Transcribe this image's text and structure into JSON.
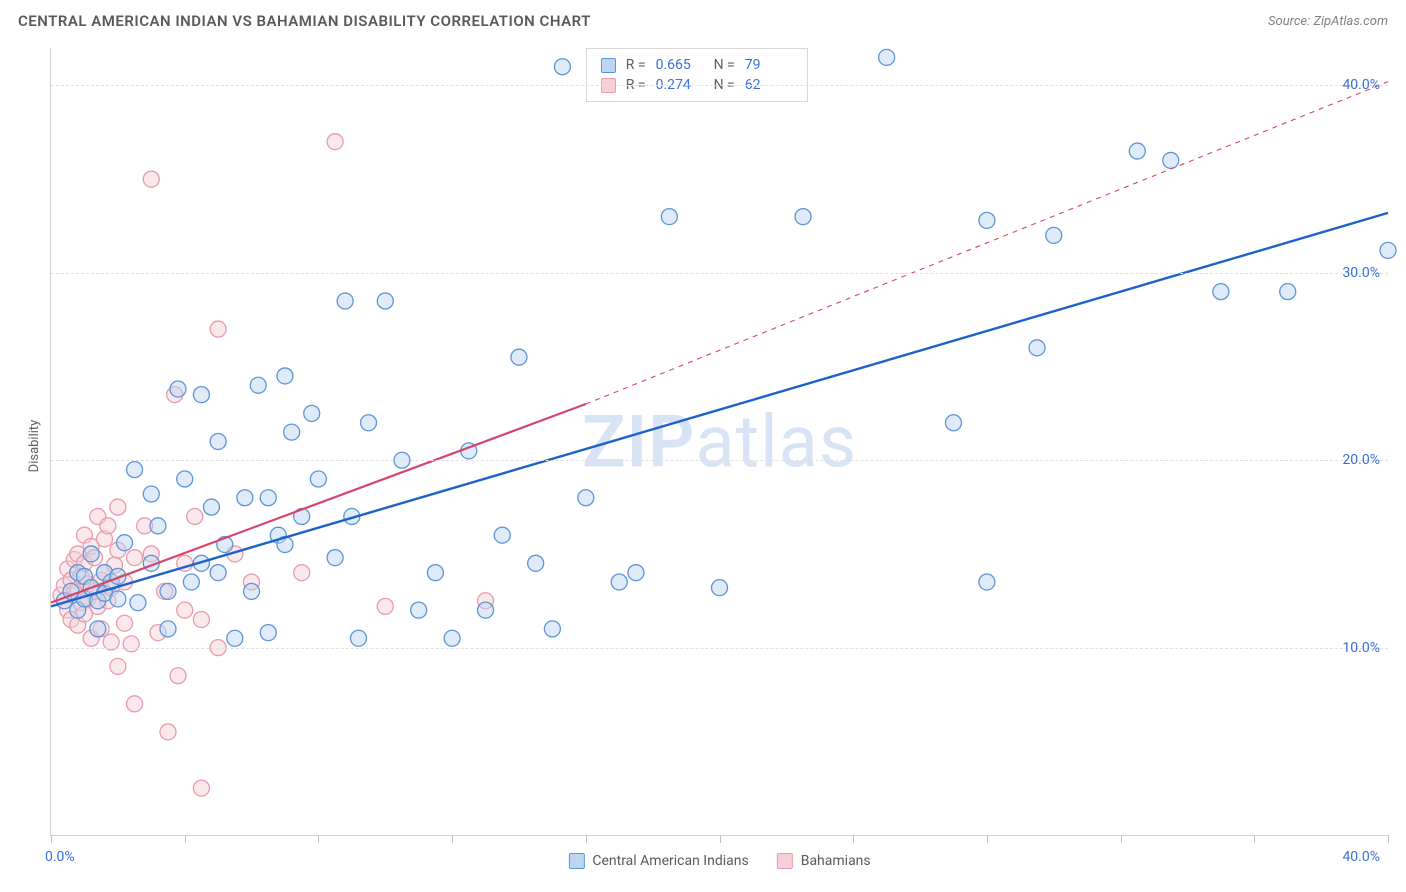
{
  "title": "CENTRAL AMERICAN INDIAN VS BAHAMIAN DISABILITY CORRELATION CHART",
  "source_label": "Source: ",
  "source_name": "ZipAtlas.com",
  "watermark": "ZIPatlas",
  "chart": {
    "type": "scatter",
    "ylabel": "Disability",
    "xlim": [
      0,
      40
    ],
    "ylim": [
      0,
      42
    ],
    "x_ticks": [
      0,
      4,
      8,
      12,
      16,
      20,
      24,
      28,
      32,
      36,
      40
    ],
    "y_gridlines": [
      10,
      20,
      30,
      40
    ],
    "y_tick_labels": [
      "10.0%",
      "20.0%",
      "30.0%",
      "40.0%"
    ],
    "x_tick_label_min": "0.0%",
    "x_tick_label_max": "40.0%",
    "axis_color": "#d0d0d0",
    "grid_color": "#e0e0e0",
    "label_color": "#3a6fd8",
    "background_color": "#ffffff",
    "marker_radius": 8,
    "marker_stroke_width": 1.3,
    "marker_fill_opacity": 0.22,
    "series": [
      {
        "name": "Central American Indians",
        "color_stroke": "#5e95d6",
        "color_fill": "#bcd5f0",
        "trend_color": "#1e62c9",
        "trend_width": 2.4,
        "trend_dash": "",
        "trend": {
          "x1": 0,
          "y1": 12.2,
          "x2": 40,
          "y2": 33.2
        },
        "extrap": null,
        "R": "0.665",
        "N": "79",
        "points": [
          [
            0.4,
            12.5
          ],
          [
            0.6,
            13.0
          ],
          [
            0.8,
            12.0
          ],
          [
            0.8,
            14.0
          ],
          [
            1.0,
            12.6
          ],
          [
            1.0,
            13.8
          ],
          [
            1.2,
            13.2
          ],
          [
            1.2,
            15.0
          ],
          [
            1.4,
            12.5
          ],
          [
            1.4,
            11.0
          ],
          [
            1.6,
            14.0
          ],
          [
            1.6,
            12.9
          ],
          [
            1.8,
            13.5
          ],
          [
            2.0,
            13.8
          ],
          [
            2.0,
            12.6
          ],
          [
            2.2,
            15.6
          ],
          [
            2.5,
            19.5
          ],
          [
            2.6,
            12.4
          ],
          [
            3.0,
            14.5
          ],
          [
            3.2,
            16.5
          ],
          [
            3.5,
            11.0
          ],
          [
            3.5,
            13.0
          ],
          [
            3.8,
            23.8
          ],
          [
            4.0,
            19.0
          ],
          [
            4.2,
            13.5
          ],
          [
            4.5,
            23.5
          ],
          [
            4.8,
            17.5
          ],
          [
            5.0,
            21.0
          ],
          [
            5.0,
            14.0
          ],
          [
            5.2,
            15.5
          ],
          [
            5.5,
            10.5
          ],
          [
            5.8,
            18.0
          ],
          [
            6.0,
            13.0
          ],
          [
            6.2,
            24.0
          ],
          [
            6.5,
            18.0
          ],
          [
            6.8,
            16.0
          ],
          [
            7.0,
            15.5
          ],
          [
            7.2,
            21.5
          ],
          [
            7.5,
            17.0
          ],
          [
            7.8,
            22.5
          ],
          [
            8.0,
            19.0
          ],
          [
            8.5,
            14.8
          ],
          [
            8.8,
            28.5
          ],
          [
            9.0,
            17.0
          ],
          [
            9.2,
            10.5
          ],
          [
            9.5,
            22.0
          ],
          [
            10.0,
            28.5
          ],
          [
            10.5,
            20.0
          ],
          [
            11.0,
            12.0
          ],
          [
            11.5,
            14.0
          ],
          [
            12.0,
            10.5
          ],
          [
            12.5,
            20.5
          ],
          [
            13.0,
            12.0
          ],
          [
            13.5,
            16.0
          ],
          [
            14.0,
            25.5
          ],
          [
            14.5,
            14.5
          ],
          [
            15.0,
            11.0
          ],
          [
            15.3,
            41.0
          ],
          [
            16.0,
            18.0
          ],
          [
            17.0,
            13.5
          ],
          [
            17.5,
            14.0
          ],
          [
            18.5,
            33.0
          ],
          [
            20.0,
            13.2
          ],
          [
            22.5,
            33.0
          ],
          [
            25.0,
            41.5
          ],
          [
            27.0,
            22.0
          ],
          [
            28.0,
            32.8
          ],
          [
            28.0,
            13.5
          ],
          [
            29.5,
            26.0
          ],
          [
            30.0,
            32.0
          ],
          [
            32.5,
            36.5
          ],
          [
            33.5,
            36.0
          ],
          [
            35.0,
            29.0
          ],
          [
            37.0,
            29.0
          ],
          [
            40.0,
            31.2
          ],
          [
            3.0,
            18.2
          ],
          [
            4.5,
            14.5
          ],
          [
            6.5,
            10.8
          ],
          [
            7.0,
            24.5
          ]
        ]
      },
      {
        "name": "Bahamians",
        "color_stroke": "#e89cac",
        "color_fill": "#f6cfd7",
        "trend_color": "#d6456c",
        "trend_width": 2.2,
        "trend_dash": "",
        "trend": {
          "x1": 0,
          "y1": 12.4,
          "x2": 16,
          "y2": 23.0
        },
        "extrap": {
          "x1": 16,
          "y1": 23.0,
          "x2": 40,
          "y2": 40.2,
          "dash": "5,5",
          "width": 1.1
        },
        "R": "0.274",
        "N": "62",
        "points": [
          [
            0.3,
            12.8
          ],
          [
            0.4,
            13.3
          ],
          [
            0.5,
            12.0
          ],
          [
            0.5,
            14.2
          ],
          [
            0.6,
            11.5
          ],
          [
            0.6,
            13.6
          ],
          [
            0.7,
            12.9
          ],
          [
            0.7,
            14.7
          ],
          [
            0.8,
            13.1
          ],
          [
            0.8,
            11.2
          ],
          [
            0.8,
            15.0
          ],
          [
            0.9,
            12.4
          ],
          [
            0.9,
            13.8
          ],
          [
            1.0,
            14.5
          ],
          [
            1.0,
            11.8
          ],
          [
            1.0,
            16.0
          ],
          [
            1.1,
            12.6
          ],
          [
            1.1,
            13.4
          ],
          [
            1.2,
            15.4
          ],
          [
            1.2,
            10.5
          ],
          [
            1.3,
            13.0
          ],
          [
            1.3,
            14.8
          ],
          [
            1.4,
            12.2
          ],
          [
            1.4,
            17.0
          ],
          [
            1.5,
            13.6
          ],
          [
            1.5,
            11.0
          ],
          [
            1.6,
            15.8
          ],
          [
            1.6,
            14.0
          ],
          [
            1.7,
            12.5
          ],
          [
            1.7,
            16.5
          ],
          [
            1.8,
            13.2
          ],
          [
            1.8,
            10.3
          ],
          [
            1.9,
            14.4
          ],
          [
            2.0,
            15.2
          ],
          [
            2.0,
            17.5
          ],
          [
            2.0,
            9.0
          ],
          [
            2.2,
            13.5
          ],
          [
            2.2,
            11.3
          ],
          [
            2.4,
            10.2
          ],
          [
            2.5,
            14.8
          ],
          [
            2.5,
            7.0
          ],
          [
            2.8,
            16.5
          ],
          [
            3.0,
            15.0
          ],
          [
            3.0,
            35.0
          ],
          [
            3.2,
            10.8
          ],
          [
            3.4,
            13.0
          ],
          [
            3.5,
            5.5
          ],
          [
            3.7,
            23.5
          ],
          [
            3.8,
            8.5
          ],
          [
            4.0,
            12.0
          ],
          [
            4.0,
            14.5
          ],
          [
            4.3,
            17.0
          ],
          [
            4.5,
            11.5
          ],
          [
            4.5,
            2.5
          ],
          [
            5.0,
            27.0
          ],
          [
            5.0,
            10.0
          ],
          [
            5.5,
            15.0
          ],
          [
            6.0,
            13.5
          ],
          [
            7.5,
            14.0
          ],
          [
            8.5,
            37.0
          ],
          [
            10.0,
            12.2
          ],
          [
            13.0,
            12.5
          ]
        ]
      }
    ]
  },
  "stats_box": {
    "R_label": "R =",
    "N_label": "N ="
  },
  "bottom_legend": [
    {
      "label": "Central American Indians",
      "fill": "#bcd5f0",
      "stroke": "#5e95d6"
    },
    {
      "label": "Bahamians",
      "fill": "#f6cfd7",
      "stroke": "#e89cac"
    }
  ]
}
